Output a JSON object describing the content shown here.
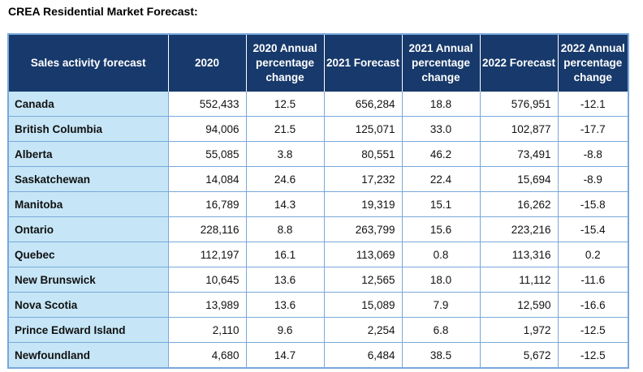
{
  "title": "CREA Residential Market Forecast:",
  "columns": [
    "Sales activity forecast",
    "2020",
    "2020 Annual percentage change",
    "2021 Forecast",
    "2021 Annual percentage change",
    "2022 Forecast",
    "2022 Annual percentage change"
  ],
  "rows": [
    {
      "region": "Canada",
      "v2020": "552,433",
      "p2020": "12.5",
      "v2021": "656,284",
      "p2021": "18.8",
      "v2022": "576,951",
      "p2022": "-12.1"
    },
    {
      "region": "British Columbia",
      "v2020": "94,006",
      "p2020": "21.5",
      "v2021": "125,071",
      "p2021": "33.0",
      "v2022": "102,877",
      "p2022": "-17.7"
    },
    {
      "region": "Alberta",
      "v2020": "55,085",
      "p2020": "3.8",
      "v2021": "80,551",
      "p2021": "46.2",
      "v2022": "73,491",
      "p2022": "-8.8"
    },
    {
      "region": "Saskatchewan",
      "v2020": "14,084",
      "p2020": "24.6",
      "v2021": "17,232",
      "p2021": "22.4",
      "v2022": "15,694",
      "p2022": "-8.9"
    },
    {
      "region": "Manitoba",
      "v2020": "16,789",
      "p2020": "14.3",
      "v2021": "19,319",
      "p2021": "15.1",
      "v2022": "16,262",
      "p2022": "-15.8"
    },
    {
      "region": "Ontario",
      "v2020": "228,116",
      "p2020": "8.8",
      "v2021": "263,799",
      "p2021": "15.6",
      "v2022": "223,216",
      "p2022": "-15.4"
    },
    {
      "region": "Quebec",
      "v2020": "112,197",
      "p2020": "16.1",
      "v2021": "113,069",
      "p2021": "0.8",
      "v2022": "113,316",
      "p2022": "0.2"
    },
    {
      "region": "New Brunswick",
      "v2020": "10,645",
      "p2020": "13.6",
      "v2021": "12,565",
      "p2021": "18.0",
      "v2022": "11,112",
      "p2022": "-11.6"
    },
    {
      "region": "Nova Scotia",
      "v2020": "13,989",
      "p2020": "13.6",
      "v2021": "15,089",
      "p2021": "7.9",
      "v2022": "12,590",
      "p2022": "-16.6"
    },
    {
      "region": "Prince Edward Island",
      "v2020": "2,110",
      "p2020": "9.6",
      "v2021": "2,254",
      "p2021": "6.8",
      "v2022": "1,972",
      "p2022": "-12.5"
    },
    {
      "region": "Newfoundland",
      "v2020": "4,680",
      "p2020": "14.7",
      "v2021": "6,484",
      "p2021": "38.5",
      "v2022": "5,672",
      "p2022": "-12.5"
    }
  ]
}
